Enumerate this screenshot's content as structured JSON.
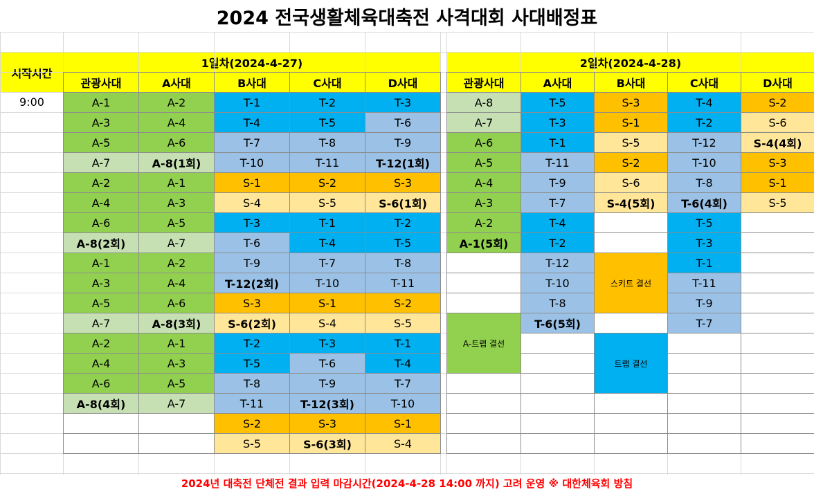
{
  "title": "2024 전국생활체육대축전 사격대회 사대배정표",
  "header": {
    "start_time_label": "시작시간",
    "day1_label": "1일차(2024-4-27)",
    "day2_label": "2일차(2024-4-28)",
    "range_labels": [
      "관광사대",
      "A사대",
      "B사대",
      "C사대",
      "D사대"
    ]
  },
  "start_time": "9:00",
  "colors": {
    "yellow": "#ffff00",
    "green": "#92d050",
    "light_green": "#c6e0b4",
    "blue": "#00b0f0",
    "light_blue": "#9bc2e6",
    "orange": "#ffc000",
    "light_orange": "#ffe699",
    "white": "#ffffff"
  },
  "day1": [
    [
      [
        "A-1",
        "g"
      ],
      [
        "A-2",
        "g"
      ],
      [
        "T-1",
        "b"
      ],
      [
        "T-2",
        "b"
      ],
      [
        "T-3",
        "b"
      ]
    ],
    [
      [
        "A-3",
        "g"
      ],
      [
        "A-4",
        "g"
      ],
      [
        "T-4",
        "b"
      ],
      [
        "T-5",
        "b"
      ],
      [
        "T-6",
        "lb"
      ]
    ],
    [
      [
        "A-5",
        "g"
      ],
      [
        "A-6",
        "g"
      ],
      [
        "T-7",
        "lb"
      ],
      [
        "T-8",
        "lb"
      ],
      [
        "T-9",
        "lb"
      ]
    ],
    [
      [
        "A-7",
        "lg"
      ],
      [
        "A-8(1회)",
        "lg",
        1
      ],
      [
        "T-10",
        "lb"
      ],
      [
        "T-11",
        "lb"
      ],
      [
        "T-12(1회)",
        "lb",
        1
      ]
    ],
    [
      [
        "A-2",
        "g"
      ],
      [
        "A-1",
        "g"
      ],
      [
        "S-1",
        "o"
      ],
      [
        "S-2",
        "o"
      ],
      [
        "S-3",
        "o"
      ]
    ],
    [
      [
        "A-4",
        "g"
      ],
      [
        "A-3",
        "g"
      ],
      [
        "S-4",
        "lo"
      ],
      [
        "S-5",
        "lo"
      ],
      [
        "S-6(1회)",
        "lo",
        1
      ]
    ],
    [
      [
        "A-6",
        "g"
      ],
      [
        "A-5",
        "g"
      ],
      [
        "T-3",
        "b"
      ],
      [
        "T-1",
        "b"
      ],
      [
        "T-2",
        "b"
      ]
    ],
    [
      [
        "A-8(2회)",
        "lg",
        1
      ],
      [
        "A-7",
        "lg"
      ],
      [
        "T-6",
        "lb"
      ],
      [
        "T-4",
        "b"
      ],
      [
        "T-5",
        "b"
      ]
    ],
    [
      [
        "A-1",
        "g"
      ],
      [
        "A-2",
        "g"
      ],
      [
        "T-9",
        "lb"
      ],
      [
        "T-7",
        "lb"
      ],
      [
        "T-8",
        "lb"
      ]
    ],
    [
      [
        "A-3",
        "g"
      ],
      [
        "A-4",
        "g"
      ],
      [
        "T-12(2회)",
        "lb",
        1
      ],
      [
        "T-10",
        "lb"
      ],
      [
        "T-11",
        "lb"
      ]
    ],
    [
      [
        "A-5",
        "g"
      ],
      [
        "A-6",
        "g"
      ],
      [
        "S-3",
        "o"
      ],
      [
        "S-1",
        "o"
      ],
      [
        "S-2",
        "o"
      ]
    ],
    [
      [
        "A-7",
        "lg"
      ],
      [
        "A-8(3회)",
        "lg",
        1
      ],
      [
        "S-6(2회)",
        "lo",
        1
      ],
      [
        "S-4",
        "lo"
      ],
      [
        "S-5",
        "lo"
      ]
    ],
    [
      [
        "A-2",
        "g"
      ],
      [
        "A-1",
        "g"
      ],
      [
        "T-2",
        "b"
      ],
      [
        "T-3",
        "b"
      ],
      [
        "T-1",
        "b"
      ]
    ],
    [
      [
        "A-4",
        "g"
      ],
      [
        "A-3",
        "g"
      ],
      [
        "T-5",
        "b"
      ],
      [
        "T-6",
        "lb"
      ],
      [
        "T-4",
        "b"
      ]
    ],
    [
      [
        "A-6",
        "g"
      ],
      [
        "A-5",
        "g"
      ],
      [
        "T-8",
        "lb"
      ],
      [
        "T-9",
        "lb"
      ],
      [
        "T-7",
        "lb"
      ]
    ],
    [
      [
        "A-8(4회)",
        "lg",
        1
      ],
      [
        "A-7",
        "lg"
      ],
      [
        "T-11",
        "lb"
      ],
      [
        "T-12(3회)",
        "lb",
        1
      ],
      [
        "T-10",
        "lb"
      ]
    ],
    [
      [
        "",
        "w"
      ],
      [
        "",
        "w"
      ],
      [
        "S-2",
        "o"
      ],
      [
        "S-3",
        "o"
      ],
      [
        "S-1",
        "o"
      ]
    ],
    [
      [
        "",
        "w"
      ],
      [
        "",
        "w"
      ],
      [
        "S-5",
        "lo"
      ],
      [
        "S-6(3회)",
        "lo",
        1
      ],
      [
        "S-4",
        "lo"
      ]
    ]
  ],
  "day2": [
    [
      [
        "A-8",
        "lg"
      ],
      [
        "T-5",
        "b"
      ],
      [
        "S-3",
        "o"
      ],
      [
        "T-4",
        "b"
      ],
      [
        "S-2",
        "o"
      ]
    ],
    [
      [
        "A-7",
        "lg"
      ],
      [
        "T-3",
        "b"
      ],
      [
        "S-1",
        "o"
      ],
      [
        "T-2",
        "b"
      ],
      [
        "S-6",
        "lo"
      ]
    ],
    [
      [
        "A-6",
        "g"
      ],
      [
        "T-1",
        "b"
      ],
      [
        "S-5",
        "lo"
      ],
      [
        "T-12",
        "lb"
      ],
      [
        "S-4(4회)",
        "lo",
        1
      ]
    ],
    [
      [
        "A-5",
        "g"
      ],
      [
        "T-11",
        "lb"
      ],
      [
        "S-2",
        "o"
      ],
      [
        "T-10",
        "lb"
      ],
      [
        "S-3",
        "o"
      ]
    ],
    [
      [
        "A-4",
        "g"
      ],
      [
        "T-9",
        "lb"
      ],
      [
        "S-6",
        "lo"
      ],
      [
        "T-8",
        "lb"
      ],
      [
        "S-1",
        "o"
      ]
    ],
    [
      [
        "A-3",
        "g"
      ],
      [
        "T-7",
        "lb"
      ],
      [
        "S-4(5회)",
        "lo",
        1
      ],
      [
        "T-6(4회)",
        "lb",
        1
      ],
      [
        "S-5",
        "lo"
      ]
    ],
    [
      [
        "A-2",
        "g"
      ],
      [
        "T-4",
        "b"
      ],
      [
        "",
        "w"
      ],
      [
        "T-5",
        "b"
      ],
      [
        "",
        "w"
      ]
    ],
    [
      [
        "A-1(5회)",
        "g",
        1
      ],
      [
        "T-2",
        "b"
      ],
      [
        "",
        "w"
      ],
      [
        "T-3",
        "b"
      ],
      [
        "",
        "w"
      ]
    ],
    [
      [
        "",
        "w"
      ],
      [
        "T-12",
        "lb"
      ],
      null,
      [
        "T-1",
        "b"
      ],
      [
        "",
        "w"
      ]
    ],
    [
      [
        "",
        "w"
      ],
      [
        "T-10",
        "lb"
      ],
      null,
      [
        "T-11",
        "lb"
      ],
      [
        "",
        "w"
      ]
    ],
    [
      [
        "",
        "w"
      ],
      [
        "T-8",
        "lb"
      ],
      null,
      [
        "T-9",
        "lb"
      ],
      [
        "",
        "w"
      ]
    ],
    [
      null,
      [
        "T-6(5회)",
        "lb",
        1
      ],
      [
        "",
        "w"
      ],
      [
        "T-7",
        "lb"
      ],
      [
        "",
        "w"
      ]
    ],
    [
      null,
      [
        "",
        "w"
      ],
      [
        "",
        "w"
      ],
      [
        "",
        "w"
      ],
      [
        "",
        "w"
      ]
    ],
    [
      [
        "",
        "w"
      ],
      [
        "",
        "w"
      ],
      null,
      [
        "",
        "w"
      ],
      [
        "",
        "w"
      ]
    ],
    [
      [
        "",
        "w"
      ],
      [
        "",
        "w"
      ],
      null,
      [
        "",
        "w"
      ],
      [
        "",
        "w"
      ]
    ],
    [
      [
        "",
        "w"
      ],
      [
        "",
        "w"
      ],
      null,
      [
        "",
        "w"
      ],
      [
        "",
        "w"
      ]
    ],
    [
      [
        "",
        "w"
      ],
      [
        "",
        "w"
      ],
      [
        "",
        "w"
      ],
      [
        "",
        "w"
      ],
      [
        "",
        "w"
      ]
    ],
    [
      [
        "",
        "w"
      ],
      [
        "",
        "w"
      ],
      [
        "",
        "w"
      ],
      [
        "",
        "w"
      ],
      [
        "",
        "w"
      ]
    ]
  ],
  "day2_merged": [
    {
      "text": "스키트 결선",
      "row": 8,
      "col": 2,
      "rowspan": 3,
      "color": "o"
    },
    {
      "text": "A-트랩 결선",
      "row": 11,
      "col": 0,
      "rowspan": 3,
      "color": "g"
    },
    {
      "text": "트랩 결선",
      "row": 12,
      "col": 2,
      "rowspan": 3,
      "color": "b"
    }
  ],
  "footer": "2024년 대축전 단체전 결과 입력 마감시간(2024-4-28 14:00 까지) 고려 운영 ※ 대한체육회 방침"
}
